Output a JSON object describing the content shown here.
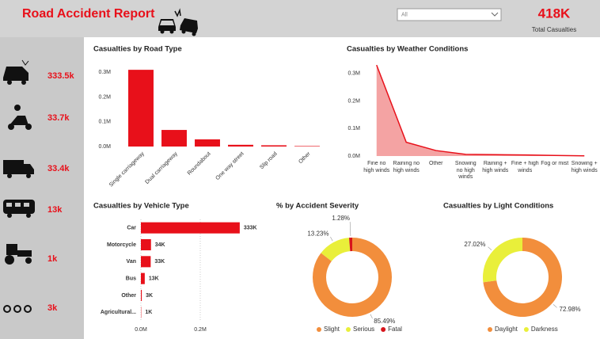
{
  "header": {
    "title": "Road Accident Report",
    "filter": "All",
    "kpi_value": "418K",
    "kpi_label": "Total Casualties"
  },
  "sidebar": {
    "values": [
      "333.5k",
      "33.7k",
      "33.4k",
      "13k",
      "1k",
      "3k"
    ]
  },
  "chart_data": [
    {
      "type": "bar",
      "title": "Casualties by Road Type",
      "categories": [
        "Single carriageway",
        "Dual carriageway",
        "Roundabout",
        "One way street",
        "Slip road",
        "Other"
      ],
      "values": [
        310000,
        67000,
        29000,
        7000,
        5000,
        2000
      ],
      "color": "#e8101a",
      "ylim": [
        0,
        320000
      ],
      "yticks": [
        {
          "value": 0,
          "label": "0.0M"
        },
        {
          "value": 100000,
          "label": "0.1M"
        },
        {
          "value": 200000,
          "label": "0.2M"
        },
        {
          "value": 300000,
          "label": "0.3M"
        }
      ],
      "grid": false
    },
    {
      "type": "area",
      "title": "Casualties by Weather Conditions",
      "categories": [
        "Fine no high winds",
        "Raining no high winds",
        "Other",
        "Snowing no high winds",
        "Raining + high winds",
        "Fine + high winds",
        "Fog or mist",
        "Snowing + high winds"
      ],
      "values": [
        331000,
        50000,
        20000,
        6000,
        5000,
        4000,
        2000,
        700
      ],
      "color": "#e8101a",
      "fill": "#f4a3a3",
      "ylim": [
        0,
        340000
      ],
      "yticks": [
        {
          "value": 0,
          "label": "0.0M"
        },
        {
          "value": 100000,
          "label": "0.1M"
        },
        {
          "value": 200000,
          "label": "0.2M"
        },
        {
          "value": 300000,
          "label": "0.3M"
        }
      ],
      "grid": false
    },
    {
      "type": "hbar",
      "title": "Casualties by Vehicle Type",
      "categories": [
        "Car",
        "Motorcycle",
        "Van",
        "Bus",
        "Other",
        "Agricultural..."
      ],
      "values": [
        333000,
        34000,
        33000,
        13000,
        3000,
        1000
      ],
      "value_labels": [
        "333K",
        "34K",
        "33K",
        "13K",
        "3K",
        "1K"
      ],
      "color": "#e8101a",
      "xlim": [
        0,
        600000
      ],
      "xticks": [
        {
          "value": 0,
          "label": "0.0M"
        },
        {
          "value": 200000,
          "label": "0.2M"
        }
      ],
      "grid": true
    },
    {
      "type": "donut",
      "title": "% by Accident Severity",
      "categories": [
        "Slight",
        "Serious",
        "Fatal"
      ],
      "values": [
        85.49,
        13.23,
        1.28
      ],
      "value_labels": [
        "85.49%",
        "13.23%",
        "1.28%"
      ],
      "colors": [
        "#f28e3c",
        "#e9ef3a",
        "#d7141b"
      ]
    },
    {
      "type": "donut",
      "title": "Casualties by Light Conditions",
      "categories": [
        "Daylight",
        "Darkness"
      ],
      "values": [
        72.98,
        27.02
      ],
      "value_labels": [
        "72.98%",
        "27.02%"
      ],
      "colors": [
        "#f28e3c",
        "#e9ef3a"
      ]
    }
  ]
}
